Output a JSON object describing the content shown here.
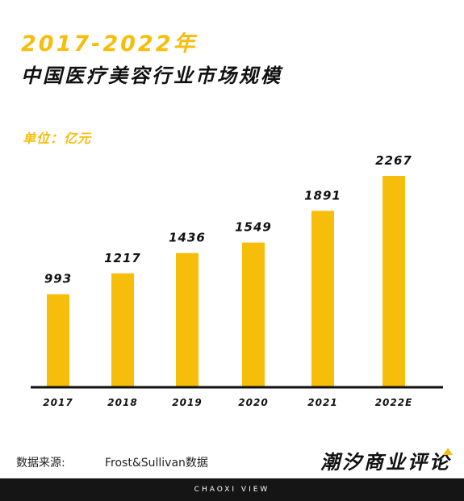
{
  "header": {
    "year_title": "2017-2022年",
    "main_title": "中国医疗美容行业市场规模",
    "unit": "单位：亿元"
  },
  "chart_data": {
    "type": "bar",
    "title": "中国医疗美容行业市场规模",
    "unit": "亿元",
    "categories": [
      "2017",
      "2018",
      "2019",
      "2020",
      "2021",
      "2022E"
    ],
    "values": [
      993,
      1217,
      1436,
      1549,
      1891,
      2267
    ],
    "ylim": [
      0,
      2267
    ],
    "grid": false,
    "bar_color": "#f7bd0b",
    "axis_color": "#111111"
  },
  "footer": {
    "source_label": "数据来源:",
    "source_value": "Frost&Sullivan数据",
    "brand": "潮汐商业评论",
    "tagline": "CHAOXI VIEW"
  }
}
